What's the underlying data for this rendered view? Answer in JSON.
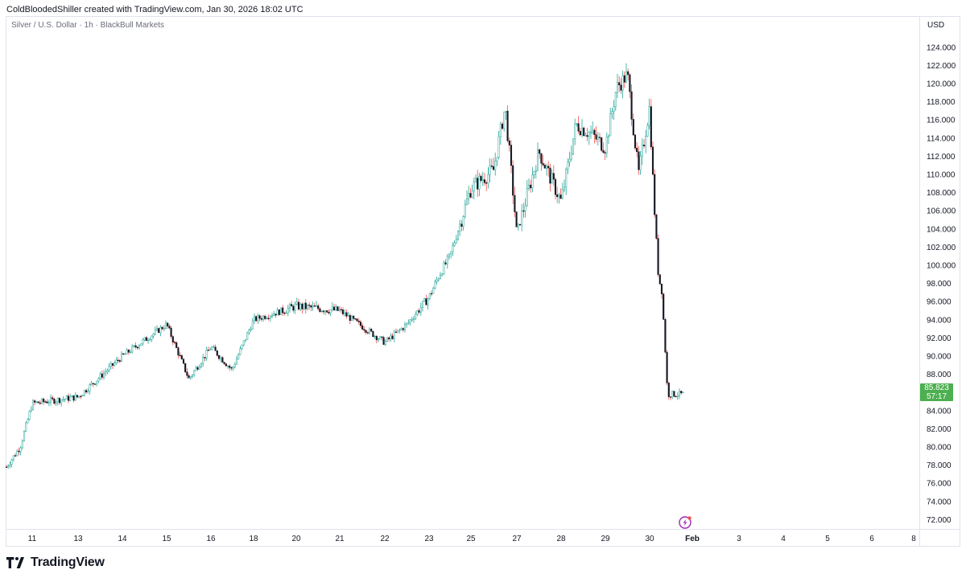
{
  "header": {
    "created_by": "ColdBloodedShiller created with TradingView.com, Jan 30, 2026 18:02 UTC"
  },
  "symbol_info": "Silver / U.S. Dollar · 1h · BlackBull Markets",
  "currency": "USD",
  "brand": {
    "name": "TradingView"
  },
  "last_price": {
    "value": "85.823",
    "countdown": "57:17",
    "color": "#4caf50"
  },
  "colors": {
    "up": "#26a69a",
    "down": "#ef5350",
    "candle_body": "#131722"
  },
  "chart_data": {
    "type": "candlestick",
    "title": "Silver / U.S. Dollar · 1h · BlackBull Markets",
    "ylim": [
      70.5,
      125.5
    ],
    "y_ticks": [
      "72.000",
      "74.000",
      "76.000",
      "78.000",
      "80.000",
      "82.000",
      "84.000",
      "86.000",
      "88.000",
      "90.000",
      "92.000",
      "94.000",
      "96.000",
      "98.000",
      "100.000",
      "102.000",
      "104.000",
      "106.000",
      "108.000",
      "110.000",
      "112.000",
      "114.000",
      "116.000",
      "118.000",
      "120.000",
      "122.000",
      "124.000"
    ],
    "x_ticks": [
      "11",
      "13",
      "14",
      "15",
      "16",
      "18",
      "20",
      "21",
      "22",
      "23",
      "25",
      "27",
      "28",
      "29",
      "30",
      "Feb",
      "3",
      "4",
      "5",
      "6",
      "8"
    ],
    "key_points": [
      {
        "x": "Jan 9",
        "y": 77.8
      },
      {
        "x": "Jan 10",
        "y": 80.0
      },
      {
        "x": "Jan 11",
        "y": 84.8
      },
      {
        "x": "Jan 13",
        "y": 85.5
      },
      {
        "x": "Jan 14",
        "y": 90.0
      },
      {
        "x": "Jan 15",
        "y": 93.5
      },
      {
        "x": "Jan 15",
        "y": 87.5
      },
      {
        "x": "Jan 16",
        "y": 91.0
      },
      {
        "x": "Jan 17",
        "y": 88.5
      },
      {
        "x": "Jan 18",
        "y": 94.0
      },
      {
        "x": "Jan 20",
        "y": 95.5
      },
      {
        "x": "Jan 21",
        "y": 95.0
      },
      {
        "x": "Jan 22",
        "y": 91.5
      },
      {
        "x": "Jan 22",
        "y": 93.5
      },
      {
        "x": "Jan 23",
        "y": 96.5
      },
      {
        "x": "Jan 23",
        "y": 99.0
      },
      {
        "x": "Jan 24",
        "y": 101.0
      },
      {
        "x": "Jan 25",
        "y": 108.5
      },
      {
        "x": "Jan 26",
        "y": 110.5
      },
      {
        "x": "Jan 26",
        "y": 117.5
      },
      {
        "x": "Jan 27",
        "y": 103.5
      },
      {
        "x": "Jan 27",
        "y": 112.5
      },
      {
        "x": "Jan 28",
        "y": 107.0
      },
      {
        "x": "Jan 28",
        "y": 115.5
      },
      {
        "x": "Jan 28",
        "y": 114.5
      },
      {
        "x": "Jan 29",
        "y": 113.0
      },
      {
        "x": "Jan 29",
        "y": 119.5
      },
      {
        "x": "Jan 29",
        "y": 121.0
      },
      {
        "x": "Jan 29",
        "y": 110.0
      },
      {
        "x": "Jan 30",
        "y": 117.5
      },
      {
        "x": "Jan 30",
        "y": 110.0
      },
      {
        "x": "Jan 30",
        "y": 104.0
      },
      {
        "x": "Jan 30",
        "y": 98.5
      },
      {
        "x": "Jan 30",
        "y": 97.5
      },
      {
        "x": "Jan 30",
        "y": 92.0
      },
      {
        "x": "Jan 30",
        "y": 85.8
      }
    ]
  }
}
